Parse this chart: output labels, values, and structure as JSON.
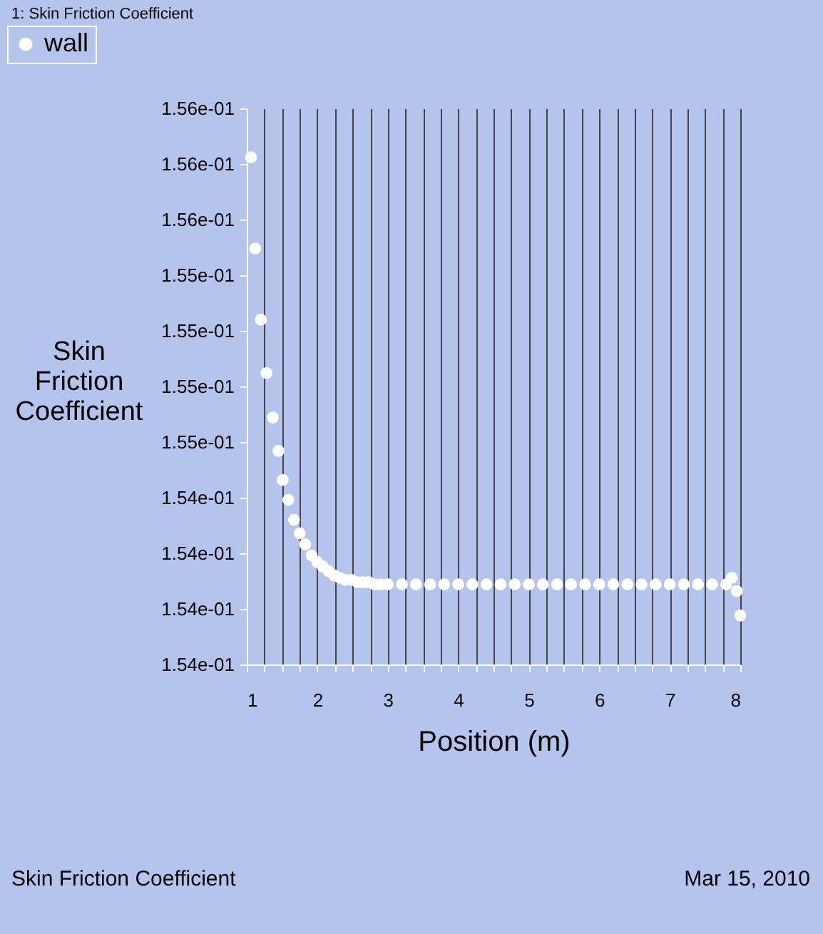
{
  "chart_data": {
    "type": "scatter",
    "xlabel": "Position (m)",
    "ylabel": "Skin\nFriction\nCoefficient",
    "annotations": [
      "1: Skin Friction Coefficient",
      "Skin Friction Coefficient",
      "Mar 15, 2010"
    ],
    "series": [
      {
        "name": "wall",
        "color": "#ffffff",
        "x": [
          1.06,
          1.12,
          1.2,
          1.28,
          1.37,
          1.45,
          1.51,
          1.59,
          1.67,
          1.75,
          1.83,
          1.92,
          2.0,
          2.08,
          2.16,
          2.24,
          2.32,
          2.4,
          2.49,
          2.57,
          2.65,
          2.73,
          2.81,
          2.9,
          3.0,
          3.2,
          3.4,
          3.6,
          3.8,
          4.0,
          4.2,
          4.4,
          4.6,
          4.8,
          5.0,
          5.2,
          5.4,
          5.6,
          5.8,
          6.0,
          6.2,
          6.4,
          6.6,
          6.8,
          7.0,
          7.2,
          7.4,
          7.6,
          7.8,
          7.88,
          7.95,
          8.0
        ],
        "values": [
          0.15583,
          0.15542,
          0.1551,
          0.15486,
          0.15466,
          0.15451,
          0.15438,
          0.15429,
          0.1542,
          0.15414,
          0.15409,
          0.15404,
          0.15401,
          0.15399,
          0.15397,
          0.15395,
          0.15394,
          0.15393,
          0.15393,
          0.15392,
          0.15392,
          0.15392,
          0.15391,
          0.15391,
          0.15391,
          0.15391,
          0.15391,
          0.15391,
          0.15391,
          0.15391,
          0.15391,
          0.15391,
          0.15391,
          0.15391,
          0.15391,
          0.15391,
          0.15391,
          0.15391,
          0.15391,
          0.15391,
          0.15391,
          0.15391,
          0.15391,
          0.15391,
          0.15391,
          0.15391,
          0.15391,
          0.15391,
          0.15391,
          0.15394,
          0.15388,
          0.15377
        ]
      }
    ],
    "xlim": [
      1,
      8
    ],
    "xticks": [
      1,
      {
        "value": 1.25,
        "label": null
      },
      {
        "value": 1.5,
        "label": null
      },
      {
        "value": 1.75,
        "label": null
      },
      2,
      {
        "value": 2.25,
        "label": null
      },
      {
        "value": 2.5,
        "label": null
      },
      {
        "value": 2.75,
        "label": null
      },
      3,
      {
        "value": 3.25,
        "label": null
      },
      {
        "value": 3.5,
        "label": null
      },
      {
        "value": 3.75,
        "label": null
      },
      4,
      {
        "value": 4.25,
        "label": null
      },
      {
        "value": 4.5,
        "label": null
      },
      {
        "value": 4.75,
        "label": null
      },
      5,
      {
        "value": 5.25,
        "label": null
      },
      {
        "value": 5.5,
        "label": null
      },
      {
        "value": 5.75,
        "label": null
      },
      6,
      {
        "value": 6.25,
        "label": null
      },
      {
        "value": 6.5,
        "label": null
      },
      {
        "value": 6.75,
        "label": null
      },
      7,
      {
        "value": 7.25,
        "label": null
      },
      {
        "value": 7.5,
        "label": null
      },
      {
        "value": 7.75,
        "label": null
      },
      8
    ],
    "ylim": [
      0.15355,
      0.15605
    ],
    "yticks": [
      {
        "value": 0.15355,
        "label": "1.54e-01"
      },
      {
        "value": 0.1538,
        "label": "1.54e-01"
      },
      {
        "value": 0.15405,
        "label": "1.54e-01"
      },
      {
        "value": 0.1543,
        "label": "1.54e-01"
      },
      {
        "value": 0.15455,
        "label": "1.55e-01"
      },
      {
        "value": 0.1548,
        "label": "1.55e-01"
      },
      {
        "value": 0.15505,
        "label": "1.55e-01"
      },
      {
        "value": 0.1553,
        "label": "1.55e-01"
      },
      {
        "value": 0.15555,
        "label": "1.56e-01"
      },
      {
        "value": 0.1558,
        "label": "1.56e-01"
      },
      {
        "value": 0.15605,
        "label": "1.56e-01"
      }
    ],
    "grid": "x",
    "legend": "top left",
    "marker": "circle"
  }
}
